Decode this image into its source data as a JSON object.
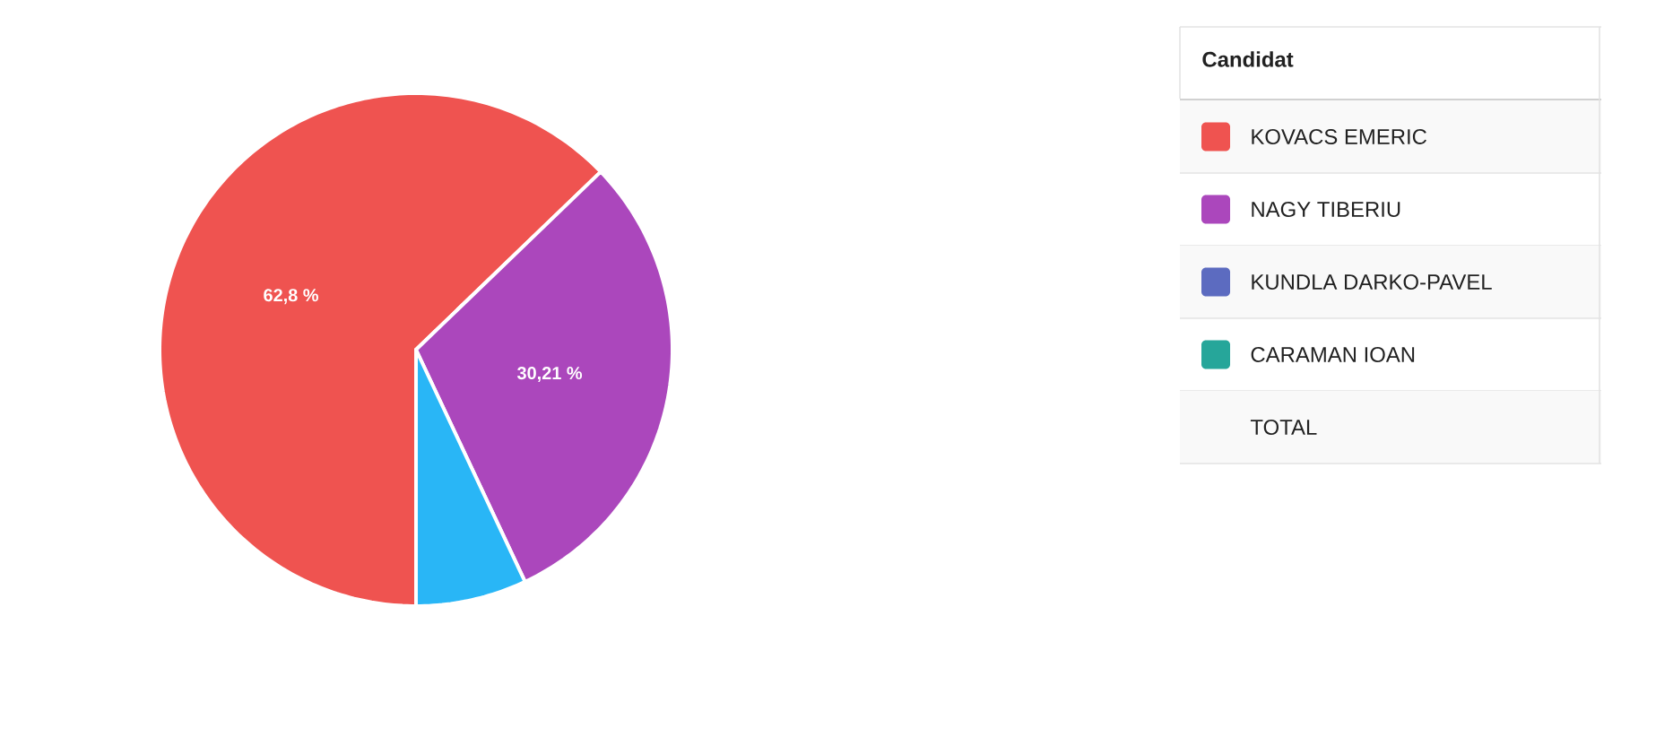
{
  "chart_data": {
    "type": "pie",
    "categories": [
      "KOVACS EMERIC",
      "NAGY TIBERIU",
      "KUNDLA DARKO-PAVEL",
      "CARAMAN IOAN",
      null
    ],
    "values": [
      62.8,
      30.21,
      null,
      null,
      6.99
    ],
    "colors": [
      "#ef5350",
      "#ab47bc",
      "#5c6bc0",
      "#26a69a",
      "#29b6f6"
    ],
    "value_labels": [
      "62,8 %",
      "30,21 %",
      null,
      null,
      null
    ],
    "legend": "right",
    "legend_title": "Candidat",
    "annotations": [
      "TOTAL"
    ]
  }
}
